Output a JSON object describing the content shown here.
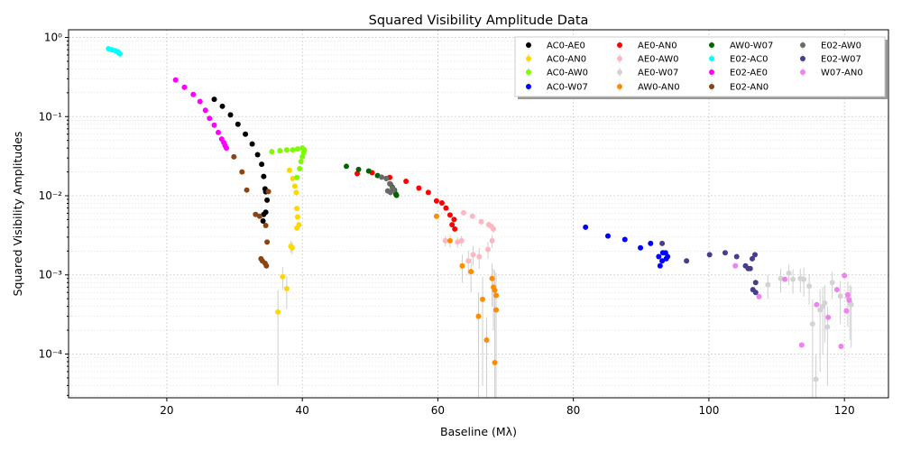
{
  "chart_data": {
    "type": "scatter",
    "title": "Squared Visibility Amplitude Data",
    "xlabel": "Baseline (Mλ)",
    "ylabel": "Squared Visibility Amplitudes",
    "xlim": [
      5.5,
      126.5
    ],
    "ylim": [
      2.8e-05,
      1.25
    ],
    "yscale": "log",
    "x_ticks": [
      20,
      40,
      60,
      80,
      100,
      120
    ],
    "x_tick_labels": [
      "20",
      "40",
      "60",
      "80",
      "100",
      "120"
    ],
    "y_ticks": [
      0.0001,
      0.001,
      0.01,
      0.1,
      1
    ],
    "y_tick_labels": [
      "10⁻⁴",
      "10⁻³",
      "10⁻²",
      "10⁻¹",
      "10⁰"
    ],
    "grid": true,
    "legend_position": "top-right",
    "series": [
      {
        "name": "AC0-AE0",
        "color": "#000000",
        "points": [
          [
            27.0,
            0.165
          ],
          [
            28.2,
            0.135
          ],
          [
            29.4,
            0.105
          ],
          [
            30.5,
            0.08
          ],
          [
            31.6,
            0.06
          ],
          [
            32.6,
            0.045
          ],
          [
            33.4,
            0.033
          ],
          [
            34.0,
            0.025
          ],
          [
            34.3,
            0.0175
          ],
          [
            34.5,
            0.0122
          ],
          [
            34.6,
            0.0112
          ],
          [
            34.8,
            0.0088
          ],
          [
            34.6,
            0.0062
          ],
          [
            34.3,
            0.0058
          ],
          [
            34.2,
            0.0048
          ]
        ],
        "errors": [
          0,
          0,
          0,
          0,
          0,
          0,
          0,
          0,
          0,
          0,
          0,
          0,
          0,
          0,
          0
        ]
      },
      {
        "name": "AC0-AN0",
        "color": "#ffd700",
        "points": [
          [
            38.1,
            0.021
          ],
          [
            38.6,
            0.0165
          ],
          [
            38.9,
            0.0132
          ],
          [
            39.1,
            0.011
          ],
          [
            39.2,
            0.0069
          ],
          [
            39.3,
            0.0054
          ],
          [
            39.5,
            0.0043
          ],
          [
            39.2,
            0.0039
          ],
          [
            38.3,
            0.0023
          ],
          [
            38.5,
            0.0022
          ],
          [
            37.1,
            0.00095
          ],
          [
            37.7,
            0.00067
          ],
          [
            36.4,
            0.00034
          ]
        ],
        "errors": [
          0,
          0,
          0,
          0,
          0,
          0,
          0,
          0,
          0.0004,
          0.0004,
          0.0003,
          0.0003,
          0.0003
        ]
      },
      {
        "name": "AC0-AW0",
        "color": "#7cfc00",
        "points": [
          [
            35.5,
            0.036
          ],
          [
            36.7,
            0.037
          ],
          [
            37.7,
            0.038
          ],
          [
            38.6,
            0.038
          ],
          [
            39.3,
            0.039
          ],
          [
            40.0,
            0.04
          ],
          [
            40.3,
            0.038
          ],
          [
            40.2,
            0.035
          ],
          [
            40.0,
            0.031
          ],
          [
            39.8,
            0.027
          ],
          [
            39.6,
            0.022
          ],
          [
            39.2,
            0.017
          ]
        ],
        "errors": [
          0,
          0,
          0,
          0,
          0,
          0,
          0,
          0,
          0,
          0,
          0,
          0
        ]
      },
      {
        "name": "AC0-W07",
        "color": "#0000ff",
        "points": [
          [
            81.8,
            0.004
          ],
          [
            85.1,
            0.0031
          ],
          [
            87.6,
            0.0028
          ],
          [
            89.9,
            0.0022
          ],
          [
            91.4,
            0.0025
          ],
          [
            92.6,
            0.0017
          ],
          [
            93.1,
            0.0015
          ],
          [
            93.6,
            0.0019
          ],
          [
            93.9,
            0.0017
          ],
          [
            93.7,
            0.0016
          ],
          [
            93.2,
            0.0019
          ],
          [
            92.8,
            0.0013
          ]
        ],
        "errors": [
          0,
          0,
          0,
          0,
          0,
          0,
          0,
          0,
          0,
          0,
          0,
          0
        ]
      },
      {
        "name": "AE0-AN0",
        "color": "#ff0000",
        "points": [
          [
            48.1,
            0.019
          ],
          [
            50.3,
            0.0195
          ],
          [
            52.9,
            0.017
          ],
          [
            55.3,
            0.0152
          ],
          [
            57.2,
            0.0125
          ],
          [
            58.6,
            0.011
          ],
          [
            59.8,
            0.0086
          ],
          [
            60.6,
            0.0081
          ],
          [
            61.2,
            0.007
          ],
          [
            61.8,
            0.0057
          ],
          [
            62.4,
            0.005
          ],
          [
            62.1,
            0.0043
          ],
          [
            62.5,
            0.0038
          ]
        ],
        "errors": [
          0,
          0,
          0,
          0,
          0,
          0,
          0,
          0,
          0,
          0,
          0,
          0,
          0
        ]
      },
      {
        "name": "AE0-AW0",
        "color": "#ffb6c1",
        "points": [
          [
            61.1,
            0.0027
          ],
          [
            62.9,
            0.0026
          ],
          [
            63.5,
            0.0027
          ],
          [
            64.5,
            0.0015
          ],
          [
            65.2,
            0.0018
          ],
          [
            66.1,
            0.0017
          ],
          [
            66.4,
            0.0047
          ],
          [
            67.5,
            0.0043
          ],
          [
            67.9,
            0.0041
          ],
          [
            68.2,
            0.0038
          ],
          [
            68.0,
            0.0027
          ],
          [
            67.4,
            0.0021
          ],
          [
            63.8,
            0.0061
          ],
          [
            65.1,
            0.0055
          ]
        ],
        "errors": [
          0.0004,
          0.0004,
          0.0004,
          0.0005,
          0.0005,
          0.0005,
          0.0004,
          0.0004,
          0.0004,
          0.0004,
          0.0005,
          0.0005,
          0,
          0
        ]
      },
      {
        "name": "AE0-W07",
        "color": "#d3d3d3",
        "points": [
          [
            108.7,
            0.00075
          ],
          [
            110.6,
            0.0009
          ],
          [
            111.8,
            0.00105
          ],
          [
            112.4,
            0.00088
          ],
          [
            113.5,
            0.0009
          ],
          [
            114.0,
            0.00088
          ],
          [
            114.8,
            0.00072
          ],
          [
            115.3,
            0.00024
          ],
          [
            115.8,
            4.8e-05
          ],
          [
            116.4,
            0.00036
          ],
          [
            117.1,
            0.00044
          ],
          [
            116.8,
            0.0004
          ],
          [
            117.5,
            0.00022
          ],
          [
            118.2,
            0.0008
          ],
          [
            119.4,
            0.00054
          ],
          [
            120.5,
            0.00052
          ],
          [
            120.8,
            0.00045
          ],
          [
            121.0,
            0.00042
          ]
        ],
        "errors": [
          0.00025,
          0.0003,
          0.0003,
          0.0003,
          0.0003,
          0.00035,
          0.0003,
          0.00025,
          5e-05,
          0.0003,
          0.0003,
          0.0003,
          0.00018,
          0.0003,
          0.0003,
          0.0003,
          0.0003,
          0.0003
        ]
      },
      {
        "name": "AW0-AN0",
        "color": "#ff8c00",
        "points": [
          [
            59.8,
            0.0055
          ],
          [
            61.8,
            0.0027
          ],
          [
            63.6,
            0.0013
          ],
          [
            64.9,
            0.0011
          ],
          [
            66.6,
            0.00049
          ],
          [
            66.0,
            0.0003
          ],
          [
            67.2,
            0.00015
          ],
          [
            68.0,
            0.0009
          ],
          [
            68.2,
            0.0007
          ],
          [
            68.4,
            0.00064
          ],
          [
            68.6,
            0.00055
          ],
          [
            68.6,
            0.00036
          ],
          [
            68.4,
            7.8e-05
          ]
        ],
        "errors": [
          0,
          0.0005,
          0.0005,
          0.0005,
          0.00045,
          0.0003,
          0.00014,
          0.0005,
          0.0005,
          0.0005,
          0.0005,
          0.0004,
          8e-05
        ]
      },
      {
        "name": "AW0-W07",
        "color": "#006400",
        "points": [
          [
            46.5,
            0.0235
          ],
          [
            48.3,
            0.0215
          ],
          [
            49.8,
            0.0205
          ],
          [
            51.1,
            0.018
          ],
          [
            52.4,
            0.0165
          ],
          [
            53.0,
            0.014
          ],
          [
            53.3,
            0.0128
          ],
          [
            53.6,
            0.0118
          ],
          [
            53.8,
            0.0105
          ],
          [
            53.9,
            0.0101
          ]
        ],
        "errors": [
          0,
          0,
          0,
          0,
          0,
          0,
          0,
          0,
          0,
          0
        ]
      },
      {
        "name": "E02-AC0",
        "color": "#00ffff",
        "points": [
          [
            11.4,
            0.72
          ],
          [
            11.9,
            0.7
          ],
          [
            12.4,
            0.68
          ],
          [
            12.8,
            0.66
          ],
          [
            13.1,
            0.62
          ],
          [
            12.9,
            0.64
          ]
        ],
        "errors": [
          0,
          0,
          0,
          0,
          0,
          0
        ]
      },
      {
        "name": "E02-AE0",
        "color": "#ff00ff",
        "points": [
          [
            21.3,
            0.29
          ],
          [
            22.6,
            0.235
          ],
          [
            23.9,
            0.19
          ],
          [
            24.9,
            0.155
          ],
          [
            25.7,
            0.12
          ],
          [
            26.3,
            0.095
          ],
          [
            27.0,
            0.078
          ],
          [
            27.6,
            0.063
          ],
          [
            28.1,
            0.052
          ],
          [
            28.4,
            0.047
          ],
          [
            28.6,
            0.043
          ],
          [
            28.8,
            0.04
          ]
        ],
        "errors": [
          0,
          0,
          0,
          0,
          0,
          0,
          0,
          0,
          0,
          0,
          0,
          0
        ]
      },
      {
        "name": "E02-AN0",
        "color": "#8b4513",
        "points": [
          [
            29.9,
            0.031
          ],
          [
            31.1,
            0.02
          ],
          [
            31.8,
            0.0118
          ],
          [
            33.1,
            0.0058
          ],
          [
            33.7,
            0.0055
          ],
          [
            34.6,
            0.0042
          ],
          [
            34.8,
            0.0026
          ],
          [
            35.0,
            0.0113
          ],
          [
            33.9,
            0.0016
          ],
          [
            34.1,
            0.0015
          ],
          [
            34.5,
            0.0014
          ],
          [
            34.7,
            0.0013
          ]
        ],
        "errors": [
          0,
          0,
          0,
          0,
          0,
          0,
          0,
          0,
          0,
          0,
          0,
          0
        ]
      },
      {
        "name": "E02-AW0",
        "color": "#696969",
        "points": [
          [
            51.7,
            0.0172
          ],
          [
            52.4,
            0.0165
          ],
          [
            52.6,
            0.0115
          ],
          [
            53.0,
            0.011
          ],
          [
            53.3,
            0.0125
          ],
          [
            53.5,
            0.0118
          ],
          [
            52.9,
            0.0142
          ]
        ],
        "errors": [
          0,
          0,
          0,
          0,
          0,
          0,
          0
        ]
      },
      {
        "name": "E02-W07",
        "color": "#483d8b",
        "points": [
          [
            93.1,
            0.0025
          ],
          [
            96.7,
            0.0015
          ],
          [
            100.1,
            0.0018
          ],
          [
            102.4,
            0.0019
          ],
          [
            104.1,
            0.0017
          ],
          [
            105.4,
            0.0013
          ],
          [
            105.8,
            0.0012
          ],
          [
            106.1,
            0.0012
          ],
          [
            106.4,
            0.0016
          ],
          [
            106.8,
            0.0018
          ],
          [
            106.9,
            0.0008
          ],
          [
            106.5,
            0.00065
          ],
          [
            106.9,
            0.0006
          ]
        ],
        "errors": [
          0,
          0,
          0,
          0,
          0,
          0,
          0,
          0,
          0,
          0,
          0,
          0,
          0
        ]
      },
      {
        "name": "W07-AN0",
        "color": "#ee82ee",
        "points": [
          [
            103.9,
            0.0013
          ],
          [
            107.4,
            0.00053
          ],
          [
            111.2,
            0.00088
          ],
          [
            113.7,
            0.00013
          ],
          [
            115.9,
            0.00042
          ],
          [
            117.6,
            0.00029
          ],
          [
            118.9,
            0.00065
          ],
          [
            119.5,
            0.000125
          ],
          [
            120.0,
            0.00098
          ],
          [
            120.3,
            0.00035
          ],
          [
            120.5,
            0.00056
          ],
          [
            120.7,
            0.00048
          ]
        ],
        "errors": [
          0,
          0,
          0,
          0,
          0,
          0,
          0,
          0,
          0,
          0,
          0,
          0
        ]
      }
    ]
  }
}
